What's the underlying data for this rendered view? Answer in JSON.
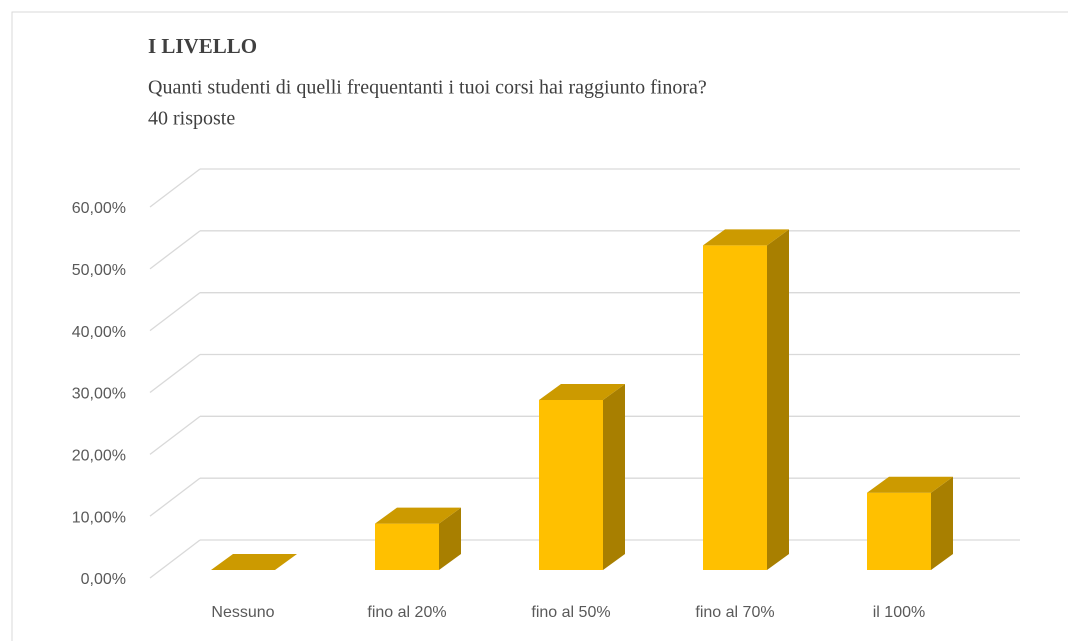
{
  "chart_data": {
    "type": "bar3d",
    "title": "I LIVELLO",
    "subtitle": "Quanti studenti di quelli frequentanti i tuoi corsi hai raggiunto finora?",
    "note": "40 risposte",
    "categories": [
      "Nessuno",
      "fino al 20%",
      "fino al 50%",
      "fino al 70%",
      "il 100%"
    ],
    "values": [
      0,
      7.5,
      27.5,
      52.5,
      12.5
    ],
    "color": "#ffc000",
    "ylim": [
      0,
      60
    ],
    "yticks": [
      {
        "value": 0,
        "label": "0,00%"
      },
      {
        "value": 10,
        "label": "10,00%"
      },
      {
        "value": 20,
        "label": "20,00%"
      },
      {
        "value": 30,
        "label": "30,00%"
      },
      {
        "value": 40,
        "label": "40,00%"
      },
      {
        "value": 50,
        "label": "50,00%"
      },
      {
        "value": 60,
        "label": "60,00%"
      }
    ],
    "grid": true
  }
}
